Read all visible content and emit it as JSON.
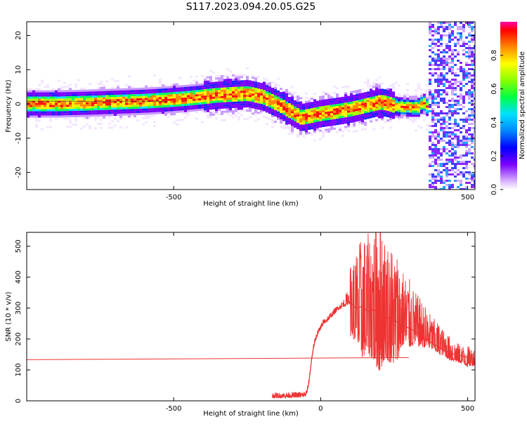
{
  "title": "S117.2023.094.20.05.G25",
  "chart_data": [
    {
      "type": "heatmap",
      "xlabel": "Height of straight line (km)",
      "ylabel": "Frequency (Hz)",
      "xlim": [
        -1000,
        525
      ],
      "ylim": [
        -25,
        24
      ],
      "xticks": [
        -500,
        0,
        500
      ],
      "yticks": [
        -20,
        -10,
        0,
        10,
        20
      ],
      "colorbar": {
        "label": "Normalized spectral amplitude",
        "range": [
          0,
          1
        ],
        "ticks": [
          0.0,
          0.2,
          0.4,
          0.6,
          0.8
        ],
        "tick_labels": [
          "0.0",
          "0.2",
          "0.4",
          "0.6",
          "0.8"
        ]
      },
      "ridge": {
        "x": [
          -1000,
          -900,
          -800,
          -700,
          -600,
          -520,
          -460,
          -400,
          -360,
          -300,
          -250,
          -200,
          -150,
          -100,
          -70,
          -40,
          0,
          50,
          100,
          150,
          200,
          220,
          260,
          300,
          330,
          345,
          360
        ],
        "y": [
          0,
          0,
          0.2,
          0.5,
          0.8,
          1.2,
          1.6,
          2.1,
          2.5,
          2.8,
          3.0,
          2.0,
          0,
          -2.5,
          -4.0,
          -3.5,
          -2.8,
          -2.2,
          -1.5,
          -0.5,
          0.5,
          0.2,
          -0.8,
          -1.0,
          -1.0,
          0.5,
          -1.0
        ]
      }
    },
    {
      "type": "line",
      "xlabel": "Height of straight line (km)",
      "ylabel": "SNR (10 * v/v)",
      "xlim": [
        -1000,
        525
      ],
      "ylim": [
        0,
        545
      ],
      "xticks": [
        -500,
        0,
        500
      ],
      "yticks": [
        0,
        100,
        200,
        300,
        400,
        500
      ],
      "color": "#ee3333",
      "series": [
        {
          "x": [
            -1000,
            300
          ],
          "y": [
            133,
            140
          ]
        },
        {
          "x": [
            -165,
            -120,
            -80,
            -60,
            -50,
            -45,
            -40,
            -35,
            -30,
            -25,
            -20,
            -10,
            0,
            10,
            20,
            30,
            40,
            50,
            60,
            70,
            80,
            100,
            120,
            140,
            160,
            180,
            200,
            220,
            240,
            260,
            280,
            300,
            320,
            340,
            360,
            380,
            400,
            420,
            440,
            460,
            480,
            500,
            525
          ],
          "y": [
            15,
            16,
            17,
            18,
            22,
            35,
            60,
            100,
            140,
            170,
            190,
            220,
            235,
            255,
            260,
            270,
            280,
            290,
            300,
            305,
            310,
            320,
            300,
            305,
            290,
            295,
            285,
            270,
            265,
            255,
            245,
            235,
            225,
            210,
            200,
            185,
            175,
            165,
            155,
            150,
            145,
            140,
            135
          ]
        },
        {
          "x": [
            50,
            80,
            100,
            120,
            140,
            160,
            180,
            200,
            220,
            240,
            260,
            280,
            300,
            320,
            340,
            360,
            380,
            400,
            420,
            440,
            460,
            480,
            500,
            525
          ],
          "y": [
            290,
            330,
            370,
            420,
            435,
            455,
            470,
            545,
            450,
            420,
            410,
            390,
            360,
            330,
            310,
            285,
            260,
            240,
            215,
            195,
            175,
            165,
            160,
            155
          ]
        },
        {
          "x": [
            100,
            120,
            140,
            160,
            180,
            200,
            220,
            240,
            260,
            280,
            300,
            320,
            340,
            360,
            380,
            400,
            420,
            440,
            460,
            480,
            500,
            525
          ],
          "y": [
            210,
            190,
            140,
            150,
            130,
            90,
            140,
            115,
            125,
            180,
            170,
            180,
            175,
            170,
            165,
            150,
            145,
            130,
            125,
            120,
            110,
            115
          ]
        }
      ]
    }
  ]
}
